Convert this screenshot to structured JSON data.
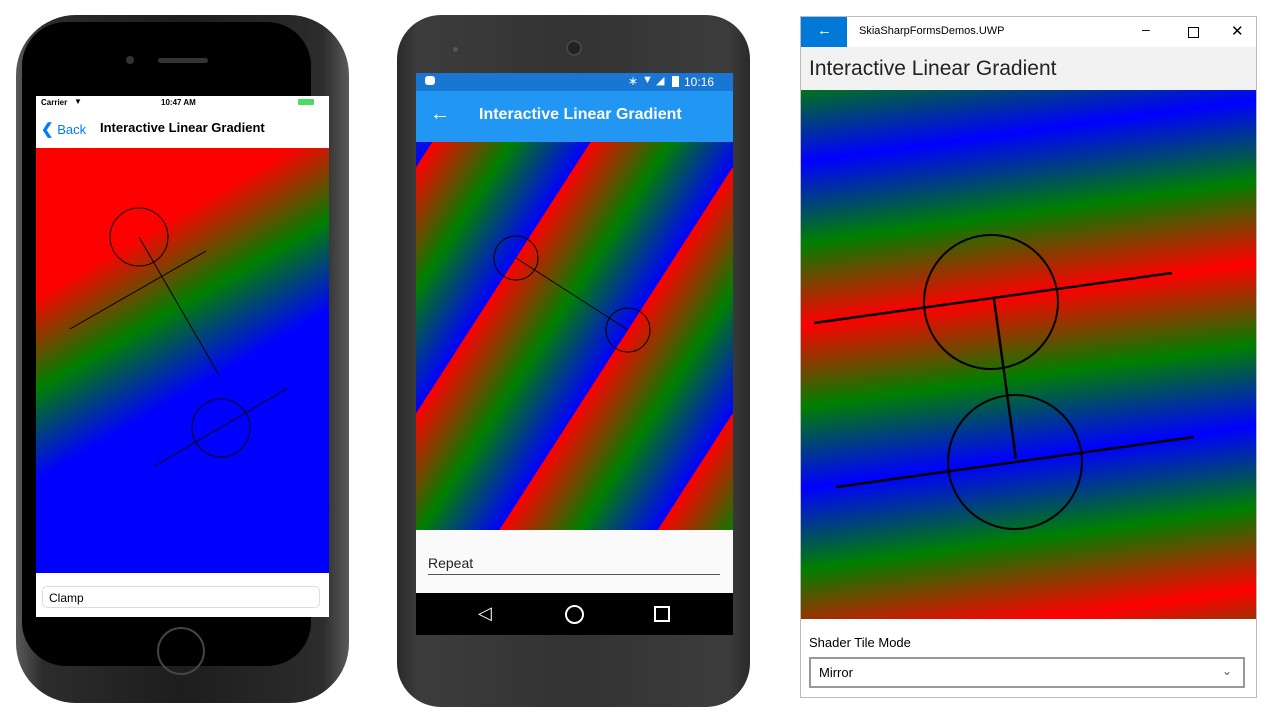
{
  "ios": {
    "status": {
      "carrier": "Carrier",
      "time": "10:47 AM"
    },
    "nav": {
      "back_label": "Back",
      "title": "Interactive Linear Gradient"
    },
    "tile_mode": "Clamp",
    "colors": {
      "accent": "#007AFF",
      "gradient": [
        "#FF0000",
        "#008000",
        "#0000FF"
      ]
    }
  },
  "android": {
    "status": {
      "time": "10:16"
    },
    "toolbar": {
      "title": "Interactive Linear Gradient",
      "back_icon": "arrow-left-icon"
    },
    "tile_mode": "Repeat",
    "nav_icons": [
      "back-triangle-icon",
      "home-circle-icon",
      "recents-square-icon"
    ],
    "colors": {
      "primary": "#2196F3",
      "status": "#1976D2"
    }
  },
  "uwp": {
    "window_title": "SkiaSharpFormsDemos.UWP",
    "page_title": "Interactive Linear Gradient",
    "picker_label": "Shader Tile Mode",
    "tile_mode": "Mirror",
    "colors": {
      "accent": "#0078D7"
    }
  }
}
